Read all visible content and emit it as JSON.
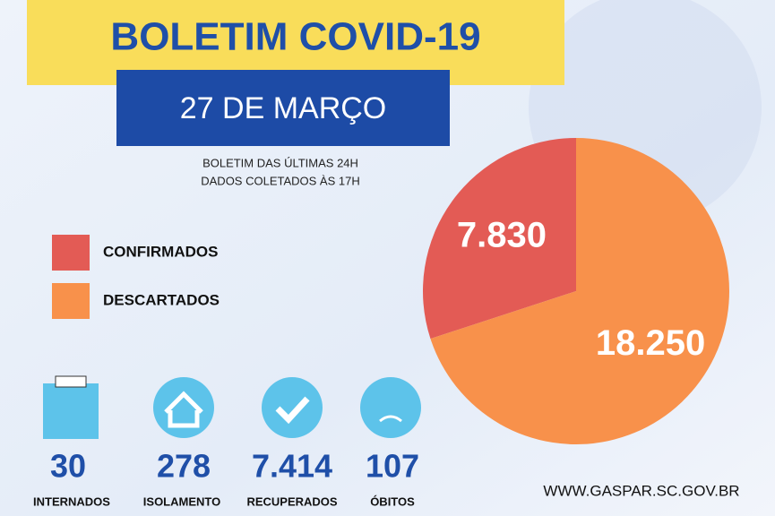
{
  "chart_data": {
    "type": "pie",
    "title": "BOLETIM COVID-19",
    "subtitle": "27 DE MARÇO",
    "notes": [
      "BOLETIM DAS ÚLTIMAS 24H",
      "DADOS COLETADOS ÀS  17H"
    ],
    "categories": [
      "CONFIRMADOS",
      "DESCARTADOS"
    ],
    "values": [
      7830,
      18250
    ],
    "value_labels": [
      "7.830",
      "18.250"
    ],
    "colors": [
      "#e35b55",
      "#f8914b"
    ],
    "legend": "left"
  },
  "stats": [
    {
      "number": "30",
      "label": "INTERNADOS"
    },
    {
      "number": "278",
      "label": "ISOLAMENTO"
    },
    {
      "number": "7.414",
      "label": "RECUPERADOS"
    },
    {
      "number": "107",
      "label": "ÓBITOS"
    }
  ],
  "footer": "WWW.GASPAR.SC.GOV.BR"
}
